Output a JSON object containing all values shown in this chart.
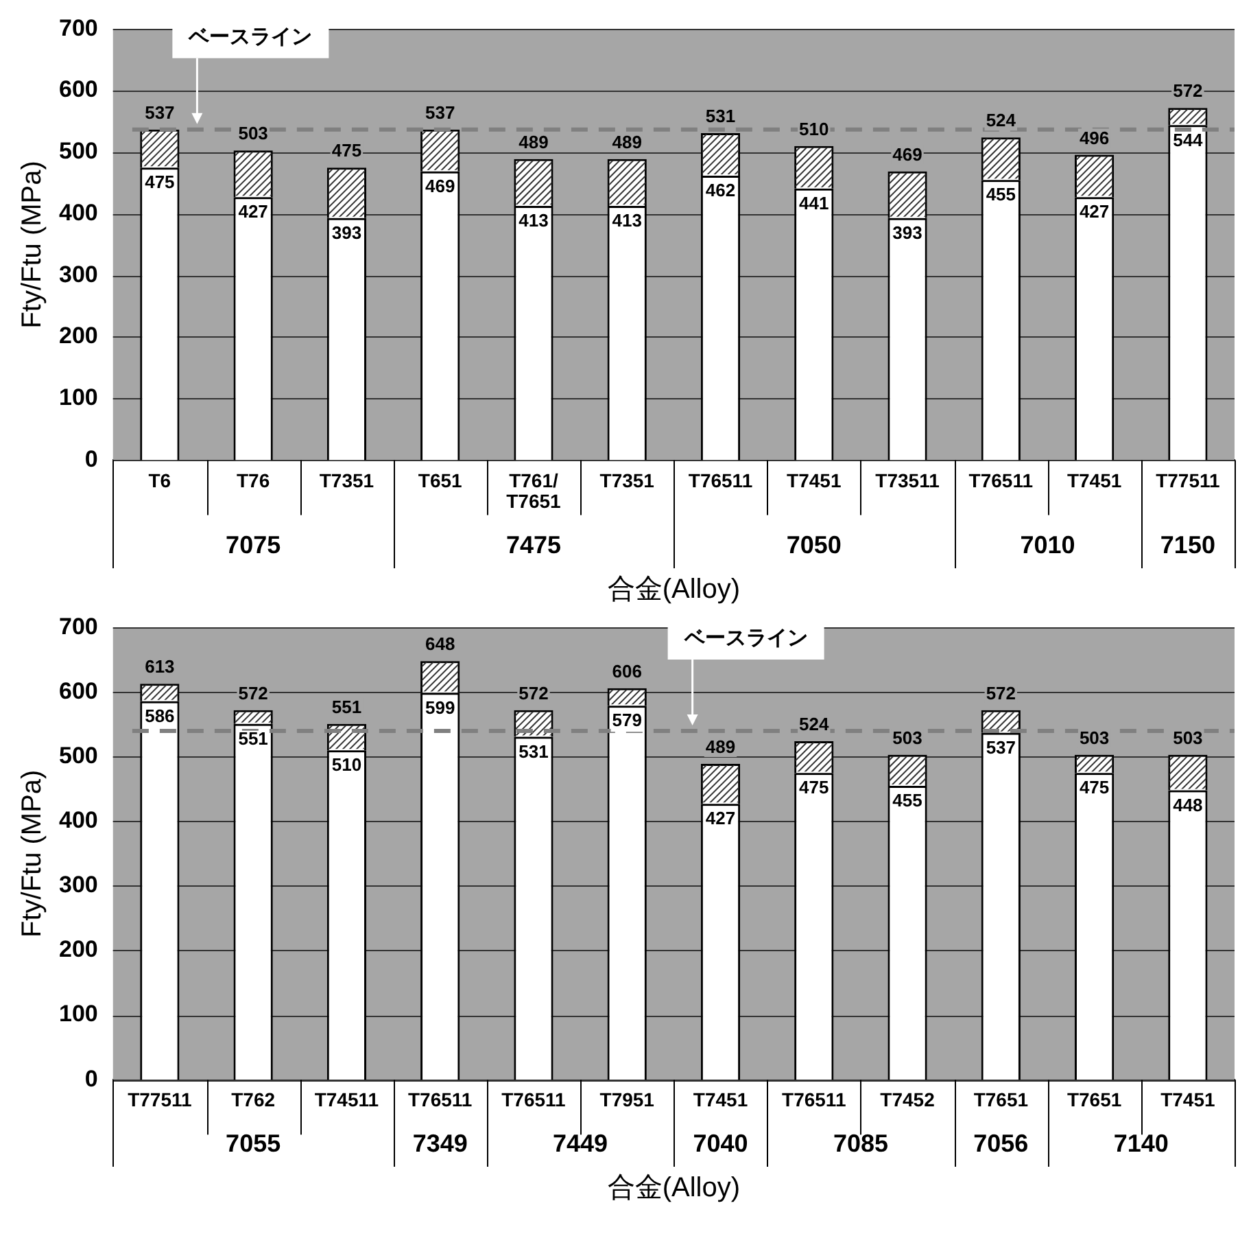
{
  "chart_data": [
    {
      "type": "bar",
      "stacked": true,
      "categories": [
        "T6",
        "T76",
        "T7351",
        "T651",
        "T761/\nT7651",
        "T7351",
        "T76511",
        "T7451",
        "T73511",
        "T76511",
        "T7451",
        "T77511"
      ],
      "series": [
        {
          "color": "#ffffff",
          "values": [
            475,
            427,
            393,
            469,
            413,
            413,
            462,
            441,
            393,
            455,
            427,
            544
          ],
          "value_labels": [
            "475",
            "427",
            "393",
            "469",
            "413",
            "413",
            "462",
            "441",
            "393",
            "455",
            "427",
            "544"
          ]
        },
        {
          "color": "#ffffff",
          "values": [
            62,
            76,
            82,
            68,
            76,
            76,
            69,
            69,
            76,
            69,
            69,
            28
          ]
        }
      ],
      "totals": [
        "537",
        "503",
        "475",
        "537",
        "489",
        "489",
        "531",
        "510",
        "469",
        "524",
        "496",
        "572"
      ],
      "ylim": [
        0,
        700
      ],
      "yticks": [
        0,
        100,
        200,
        300,
        400,
        500,
        600,
        700
      ],
      "grid": "y",
      "legend": false,
      "ylabel": "Fty/Ftu (MPa)",
      "xlabel": "合金(Alloy)",
      "ref_lines": [
        {
          "axis": "y",
          "value": 537,
          "label": "ベースライン",
          "color": "#808080",
          "line_style": "dashed"
        }
      ],
      "annotations": [
        "7075",
        "7475",
        "7050",
        "7010",
        "7150"
      ]
    },
    {
      "type": "bar",
      "stacked": true,
      "categories": [
        "T77511",
        "T762",
        "T74511",
        "T76511",
        "T76511",
        "T7951",
        "T7451",
        "T76511",
        "T7452",
        "T7651",
        "T7651",
        "T7451"
      ],
      "series": [
        {
          "color": "#ffffff",
          "values": [
            586,
            551,
            510,
            599,
            531,
            579,
            427,
            475,
            455,
            537,
            475,
            448
          ],
          "value_labels": [
            "586",
            "551",
            "510",
            "599",
            "531",
            "579",
            "427",
            "475",
            "455",
            "537",
            "475",
            "448"
          ]
        },
        {
          "color": "#ffffff",
          "values": [
            27,
            21,
            41,
            49,
            41,
            27,
            62,
            49,
            48,
            35,
            28,
            55
          ]
        }
      ],
      "totals": [
        "613",
        "572",
        "551",
        "648",
        "572",
        "606",
        "489",
        "524",
        "503",
        "572",
        "503",
        "503"
      ],
      "ylim": [
        0,
        700
      ],
      "yticks": [
        0,
        100,
        200,
        300,
        400,
        500,
        600,
        700
      ],
      "grid": "y",
      "legend": false,
      "ylabel": "Fty/Ftu (MPa)",
      "xlabel": "合金(Alloy)",
      "ref_lines": [
        {
          "axis": "y",
          "value": 540,
          "label": "ベースライン",
          "color": "#808080",
          "line_style": "dashed"
        }
      ],
      "annotations": [
        "7055",
        "7349",
        "7449",
        "7040",
        "7085",
        "7056",
        "7140"
      ]
    }
  ]
}
